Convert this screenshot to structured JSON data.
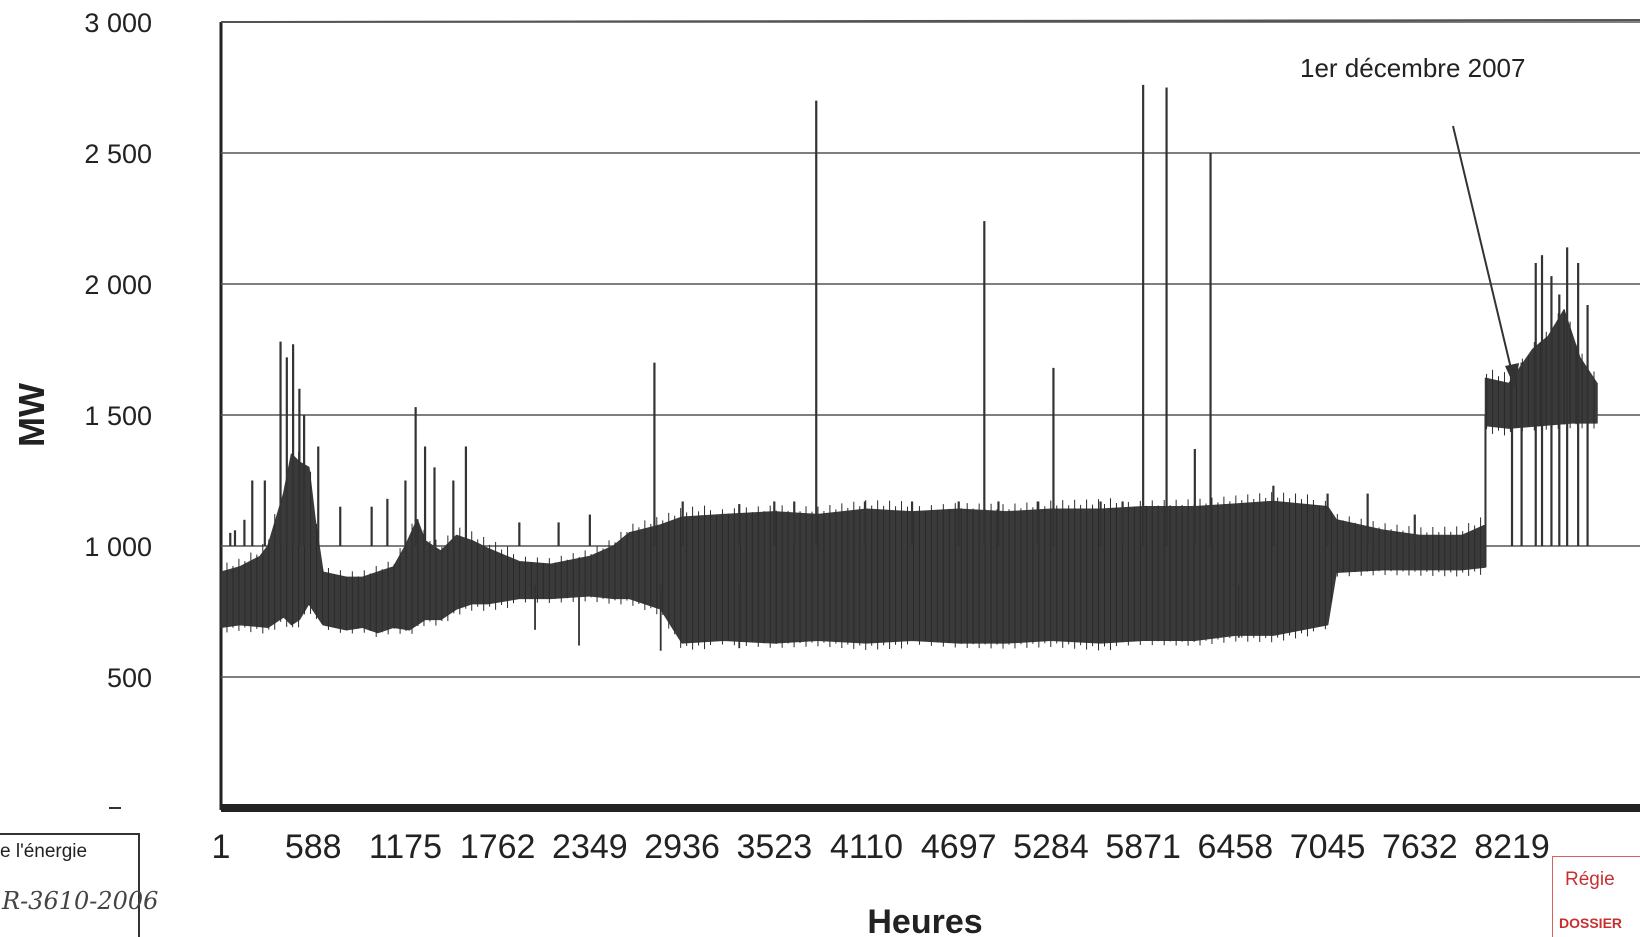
{
  "chart_data": {
    "type": "line",
    "title": "",
    "xlabel": "Heures",
    "ylabel": "MW",
    "xlim": [
      1,
      8760
    ],
    "ylim": [
      0,
      3000
    ],
    "y_ticks": [
      3000,
      2500,
      2000,
      1500,
      1000,
      500
    ],
    "y_tick_labels": [
      "3 000",
      "2 500",
      "2 000",
      "1 500",
      "1 000",
      "500"
    ],
    "x_ticks": [
      1,
      588,
      1175,
      1762,
      2349,
      2936,
      3523,
      4110,
      4697,
      5284,
      5871,
      6458,
      7045,
      7632,
      8219
    ],
    "x_tick_labels": [
      "1",
      "588",
      "1175",
      "1762",
      "2349",
      "2936",
      "3523",
      "4110",
      "4697",
      "5284",
      "5871",
      "6458",
      "7045",
      "7632",
      "8219"
    ],
    "grid": true,
    "legend": "none",
    "series_color": "#3a3a3a",
    "series": [
      {
        "envelope_low": [
          [
            1,
            690
          ],
          [
            120,
            700
          ],
          [
            300,
            690
          ],
          [
            400,
            730
          ],
          [
            450,
            700
          ],
          [
            500,
            720
          ],
          [
            560,
            780
          ],
          [
            650,
            700
          ],
          [
            800,
            680
          ],
          [
            900,
            690
          ],
          [
            1000,
            670
          ],
          [
            1100,
            690
          ],
          [
            1200,
            680
          ],
          [
            1300,
            720
          ],
          [
            1400,
            720
          ],
          [
            1500,
            760
          ],
          [
            1600,
            780
          ],
          [
            1700,
            780
          ],
          [
            1900,
            800
          ],
          [
            2100,
            800
          ],
          [
            2349,
            810
          ],
          [
            2500,
            800
          ],
          [
            2600,
            800
          ],
          [
            2800,
            760
          ],
          [
            2936,
            630
          ],
          [
            3200,
            640
          ],
          [
            3523,
            630
          ],
          [
            3800,
            640
          ],
          [
            4110,
            630
          ],
          [
            4400,
            640
          ],
          [
            4697,
            630
          ],
          [
            5000,
            630
          ],
          [
            5284,
            640
          ],
          [
            5600,
            630
          ],
          [
            5871,
            640
          ],
          [
            6200,
            640
          ],
          [
            6458,
            660
          ],
          [
            6700,
            660
          ],
          [
            7045,
            700
          ],
          [
            7100,
            900
          ],
          [
            7400,
            910
          ],
          [
            7632,
            910
          ],
          [
            7900,
            910
          ],
          [
            8050,
            920
          ],
          [
            8050,
            1460
          ],
          [
            8200,
            1450
          ],
          [
            8400,
            1460
          ],
          [
            8600,
            1470
          ],
          [
            8760,
            1470
          ]
        ],
        "envelope_high": [
          [
            1,
            900
          ],
          [
            120,
            920
          ],
          [
            250,
            960
          ],
          [
            300,
            1000
          ],
          [
            400,
            1200
          ],
          [
            450,
            1350
          ],
          [
            500,
            1320
          ],
          [
            560,
            1300
          ],
          [
            600,
            1100
          ],
          [
            650,
            900
          ],
          [
            800,
            880
          ],
          [
            900,
            880
          ],
          [
            1000,
            900
          ],
          [
            1100,
            920
          ],
          [
            1175,
            1000
          ],
          [
            1250,
            1100
          ],
          [
            1300,
            1020
          ],
          [
            1400,
            980
          ],
          [
            1500,
            1040
          ],
          [
            1600,
            1020
          ],
          [
            1700,
            990
          ],
          [
            1900,
            940
          ],
          [
            2100,
            930
          ],
          [
            2349,
            960
          ],
          [
            2500,
            1000
          ],
          [
            2600,
            1050
          ],
          [
            2800,
            1080
          ],
          [
            2936,
            1110
          ],
          [
            3200,
            1120
          ],
          [
            3523,
            1130
          ],
          [
            3800,
            1120
          ],
          [
            4110,
            1140
          ],
          [
            4400,
            1130
          ],
          [
            4697,
            1140
          ],
          [
            5000,
            1130
          ],
          [
            5284,
            1140
          ],
          [
            5600,
            1140
          ],
          [
            5871,
            1150
          ],
          [
            6200,
            1150
          ],
          [
            6458,
            1160
          ],
          [
            6700,
            1170
          ],
          [
            7045,
            1150
          ],
          [
            7100,
            1100
          ],
          [
            7400,
            1060
          ],
          [
            7632,
            1040
          ],
          [
            7900,
            1040
          ],
          [
            8050,
            1080
          ],
          [
            8050,
            1640
          ],
          [
            8200,
            1620
          ],
          [
            8350,
            1750
          ],
          [
            8450,
            1800
          ],
          [
            8550,
            1900
          ],
          [
            8650,
            1720
          ],
          [
            8760,
            1620
          ]
        ],
        "spikes": [
          [
            60,
            1050
          ],
          [
            90,
            1060
          ],
          [
            150,
            1100
          ],
          [
            200,
            1250
          ],
          [
            280,
            1250
          ],
          [
            380,
            1780
          ],
          [
            420,
            1720
          ],
          [
            460,
            1770
          ],
          [
            500,
            1600
          ],
          [
            530,
            1500
          ],
          [
            620,
            1380
          ],
          [
            760,
            1150
          ],
          [
            960,
            1150
          ],
          [
            1060,
            1180
          ],
          [
            1175,
            1250
          ],
          [
            1240,
            1530
          ],
          [
            1300,
            1380
          ],
          [
            1360,
            1300
          ],
          [
            1480,
            1250
          ],
          [
            1560,
            1380
          ],
          [
            1900,
            1090
          ],
          [
            2150,
            1090
          ],
          [
            2349,
            1120
          ],
          [
            2760,
            1700
          ],
          [
            2940,
            1170
          ],
          [
            3300,
            1160
          ],
          [
            3523,
            1170
          ],
          [
            3650,
            1170
          ],
          [
            3790,
            2700
          ],
          [
            4100,
            1170
          ],
          [
            4400,
            1170
          ],
          [
            4697,
            1170
          ],
          [
            4860,
            2240
          ],
          [
            4950,
            1170
          ],
          [
            5200,
            1170
          ],
          [
            5300,
            1680
          ],
          [
            5600,
            1170
          ],
          [
            5740,
            1170
          ],
          [
            5871,
            2760
          ],
          [
            6020,
            2750
          ],
          [
            6200,
            1370
          ],
          [
            6300,
            2500
          ],
          [
            6700,
            1230
          ],
          [
            7045,
            1200
          ],
          [
            7300,
            1200
          ],
          [
            7600,
            1120
          ],
          [
            8219,
            1690
          ],
          [
            8280,
            1700
          ],
          [
            8370,
            2080
          ],
          [
            8410,
            2110
          ],
          [
            8470,
            2030
          ],
          [
            8520,
            1960
          ],
          [
            8570,
            2140
          ],
          [
            8640,
            2080
          ],
          [
            8700,
            1920
          ]
        ],
        "dips": [
          [
            2000,
            680
          ],
          [
            2280,
            620
          ],
          [
            2800,
            600
          ],
          [
            3300,
            610
          ],
          [
            6480,
            650
          ]
        ]
      }
    ],
    "annotations": [
      {
        "text": "1er décembre 2007",
        "points_to": [
          8050,
          1600
        ]
      }
    ]
  },
  "stamps": {
    "left": {
      "title": "e l'énergie",
      "handwriting": "R-3610-2006"
    },
    "right": {
      "title": "Régie",
      "subtitle": "DOSSIER"
    }
  }
}
